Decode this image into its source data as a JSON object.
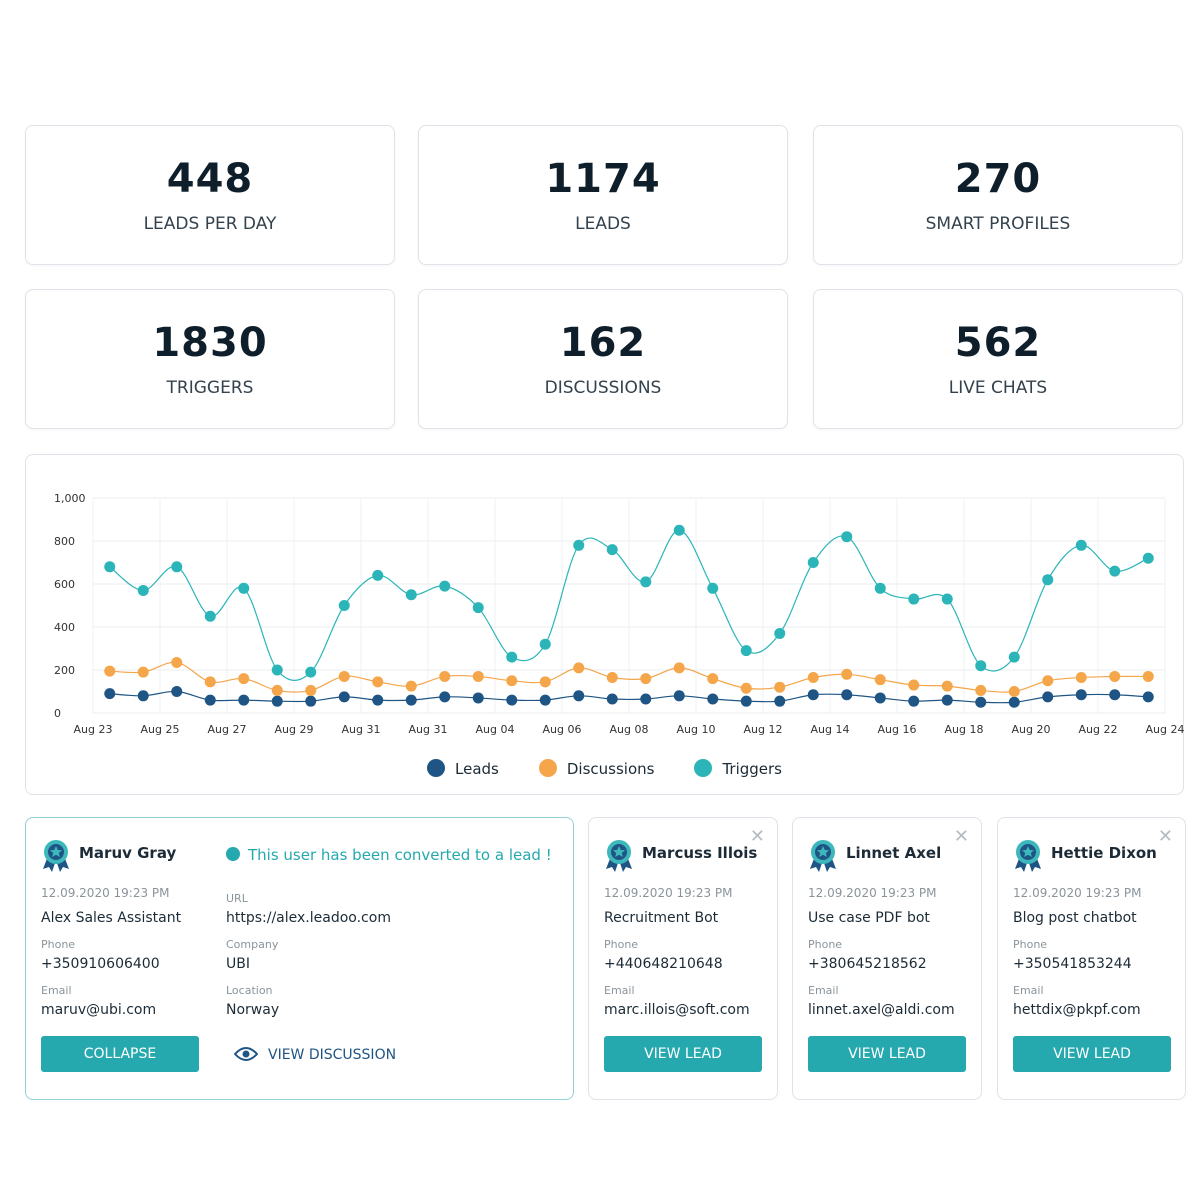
{
  "stats": [
    {
      "value": "448",
      "label": "LEADS PER DAY"
    },
    {
      "value": "1174",
      "label": "LEADS"
    },
    {
      "value": "270",
      "label": "SMART PROFILES"
    },
    {
      "value": "1830",
      "label": "TRIGGERS"
    },
    {
      "value": "162",
      "label": "DISCUSSIONS"
    },
    {
      "value": "562",
      "label": "LIVE CHATS"
    }
  ],
  "chart_data": {
    "type": "line",
    "xlabels": [
      "Aug 23",
      "Aug 25",
      "Aug 27",
      "Aug 29",
      "Aug 31",
      "Aug 31",
      "Aug 04",
      "Aug 06",
      "Aug 08",
      "Aug 10",
      "Aug 12",
      "Aug 14",
      "Aug 16",
      "Aug 18",
      "Aug 20",
      "Aug 22",
      "Aug 24"
    ],
    "ylim": [
      0,
      1000
    ],
    "yticks": [
      0,
      200,
      400,
      600,
      800,
      {
        "value": 1000,
        "label": "1,000"
      }
    ],
    "grid": true,
    "series": [
      {
        "name": "Leads",
        "color": "#1f5584",
        "values": [
          90,
          80,
          100,
          60,
          60,
          55,
          55,
          75,
          60,
          60,
          75,
          70,
          60,
          60,
          80,
          65,
          65,
          80,
          65,
          55,
          55,
          85,
          85,
          70,
          55,
          60,
          50,
          50,
          75,
          85,
          85,
          75
        ]
      },
      {
        "name": "Discussions",
        "color": "#f5a54a",
        "values": [
          195,
          190,
          235,
          145,
          160,
          105,
          105,
          170,
          145,
          125,
          170,
          170,
          150,
          145,
          210,
          165,
          160,
          210,
          160,
          115,
          120,
          165,
          180,
          155,
          130,
          125,
          105,
          100,
          150,
          165,
          170,
          170
        ]
      },
      {
        "name": "Triggers",
        "color": "#2bb5b8",
        "values": [
          680,
          570,
          680,
          450,
          580,
          200,
          190,
          500,
          640,
          550,
          590,
          490,
          260,
          320,
          780,
          760,
          610,
          850,
          580,
          290,
          370,
          700,
          820,
          580,
          530,
          530,
          220,
          260,
          620,
          780,
          660,
          720
        ]
      }
    ]
  },
  "cards": [
    {
      "name": "Maruv Gray",
      "date": "12.09.2020 19:23 PM",
      "bot": "Alex Sales Assistant",
      "phone_label": "Phone",
      "phone": "+350910606400",
      "email_label": "Email",
      "email": "maruv@ubi.com",
      "button": "COLLAPSE",
      "message": "This user has been converted to a lead !",
      "url_label": "URL",
      "url": "https://alex.leadoo.com",
      "company_label": "Company",
      "company": "UBI",
      "location_label": "Location",
      "location": "Norway",
      "link": "VIEW DISCUSSION"
    },
    {
      "name": "Marcuss Illois",
      "date": "12.09.2020 19:23 PM",
      "bot": "Recruitment Bot",
      "phone_label": "Phone",
      "phone": "+440648210648",
      "email_label": "Email",
      "email": "marc.illois@soft.com",
      "button": "VIEW LEAD"
    },
    {
      "name": "Linnet Axel",
      "date": "12.09.2020 19:23 PM",
      "bot": "Use case PDF bot",
      "phone_label": "Phone",
      "phone": "+380645218562",
      "email_label": "Email",
      "email": "linnet.axel@aldi.com",
      "button": "VIEW LEAD"
    },
    {
      "name": "Hettie Dixon",
      "date": "12.09.2020 19:23 PM",
      "bot": "Blog post chatbot",
      "phone_label": "Phone",
      "phone": "+350541853244",
      "email_label": "Email",
      "email": "hettdix@pkpf.com",
      "button": "VIEW LEAD"
    }
  ]
}
